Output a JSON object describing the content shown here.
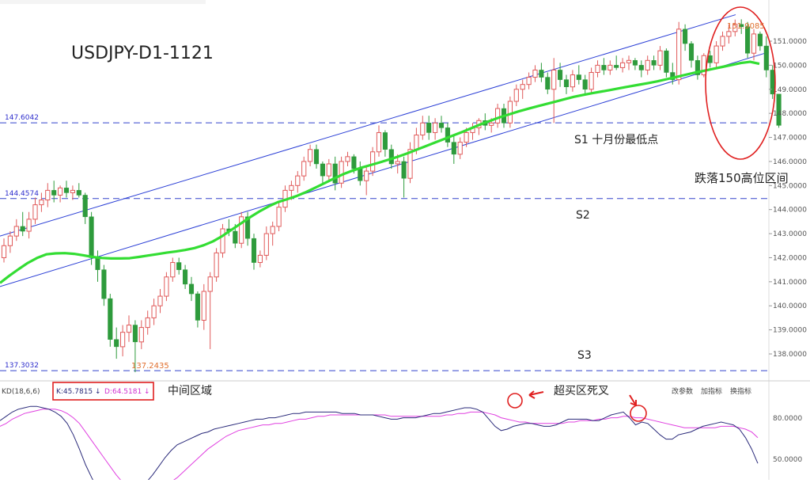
{
  "chart_data": {
    "type": "candlestick",
    "title": "USDJPY-D1-1121",
    "y_axis": {
      "ticks": [
        "151.0000",
        "150.0000",
        "149.0000",
        "148.0000",
        "147.0000",
        "146.0000",
        "145.0000",
        "144.0000",
        "143.0000",
        "142.0000",
        "141.0000",
        "140.0000",
        "139.0000",
        "138.0000"
      ],
      "range": [
        137.2,
        152.2
      ]
    },
    "levels": [
      {
        "value": 147.6042,
        "label": "147.6042"
      },
      {
        "value": 144.4574,
        "label": "144.4574"
      },
      {
        "value": 137.3032,
        "label": "137.3032"
      }
    ],
    "price_marks": {
      "high": "151.9085",
      "low": "137.2435"
    },
    "annotations": {
      "s1": "S1 十月份最低点",
      "s2": "S2",
      "s3": "S3",
      "circle_note": "跌落150高位区间",
      "kd_middle": "中间区域",
      "kd_cross": "超买区死叉"
    },
    "indicator": {
      "name": "KD(18,6,6)",
      "k": "K:45.7815",
      "d": "D:64.5181",
      "y_ticks": [
        "80.0000",
        "50.0000"
      ],
      "buttons": [
        "改参数",
        "加指标",
        "换指标"
      ]
    },
    "colors": {
      "up": "#e05a5a",
      "down": "#2e9b3c",
      "ma": "#33dd33",
      "channel": "#2b3fd6",
      "level_line": "#3344cc",
      "k_line": "#2a2a7a",
      "d_line": "#e040e0",
      "highlight": "#e02020"
    },
    "candles": [
      [
        142.0,
        142.8,
        141.8,
        142.5
      ],
      [
        142.5,
        143.1,
        142.2,
        142.9
      ],
      [
        142.9,
        143.6,
        142.7,
        143.3
      ],
      [
        143.3,
        143.9,
        142.9,
        143.1
      ],
      [
        143.1,
        143.9,
        142.8,
        143.6
      ],
      [
        143.6,
        144.5,
        143.4,
        144.2
      ],
      [
        144.2,
        144.7,
        143.9,
        144.4
      ],
      [
        144.4,
        145.1,
        144.1,
        144.8
      ],
      [
        144.8,
        145.2,
        144.3,
        144.6
      ],
      [
        144.6,
        145.0,
        144.3,
        144.9
      ],
      [
        144.9,
        145.2,
        144.5,
        144.7
      ],
      [
        144.7,
        145.0,
        144.4,
        144.8
      ],
      [
        144.8,
        145.1,
        144.5,
        144.6
      ],
      [
        144.6,
        144.7,
        143.4,
        143.7
      ],
      [
        143.7,
        143.9,
        141.7,
        142.0
      ],
      [
        142.0,
        142.3,
        141.0,
        141.5
      ],
      [
        141.5,
        141.7,
        140.0,
        140.3
      ],
      [
        140.3,
        140.5,
        138.3,
        138.6
      ],
      [
        138.6,
        139.1,
        137.8,
        138.3
      ],
      [
        138.3,
        139.2,
        137.9,
        138.9
      ],
      [
        138.9,
        139.6,
        138.5,
        139.2
      ],
      [
        139.2,
        139.4,
        137.24,
        138.5
      ],
      [
        138.5,
        139.4,
        138.2,
        139.1
      ],
      [
        139.1,
        139.8,
        138.8,
        139.5
      ],
      [
        139.5,
        140.3,
        139.2,
        140.0
      ],
      [
        140.0,
        140.7,
        139.7,
        140.4
      ],
      [
        140.4,
        141.4,
        140.2,
        141.2
      ],
      [
        141.2,
        142.0,
        141.0,
        141.8
      ],
      [
        141.8,
        142.0,
        141.3,
        141.5
      ],
      [
        141.5,
        141.7,
        140.7,
        140.9
      ],
      [
        140.9,
        141.2,
        140.2,
        140.5
      ],
      [
        140.5,
        140.6,
        139.1,
        139.4
      ],
      [
        139.4,
        140.9,
        139.0,
        140.6
      ],
      [
        140.6,
        141.4,
        138.2,
        141.2
      ],
      [
        141.2,
        142.4,
        141.0,
        142.2
      ],
      [
        142.2,
        143.4,
        142.0,
        143.2
      ],
      [
        143.2,
        143.6,
        142.9,
        143.1
      ],
      [
        143.1,
        143.4,
        142.4,
        142.6
      ],
      [
        142.6,
        143.9,
        142.4,
        143.7
      ],
      [
        143.7,
        143.9,
        142.5,
        142.8
      ],
      [
        142.8,
        143.0,
        141.5,
        141.8
      ],
      [
        141.8,
        142.3,
        141.6,
        142.1
      ],
      [
        142.1,
        143.3,
        141.9,
        143.0
      ],
      [
        143.0,
        143.5,
        142.5,
        143.3
      ],
      [
        143.3,
        144.3,
        143.1,
        144.1
      ],
      [
        144.1,
        145.0,
        143.9,
        144.8
      ],
      [
        144.8,
        145.2,
        144.4,
        145.0
      ],
      [
        145.0,
        145.6,
        144.7,
        145.4
      ],
      [
        145.4,
        146.2,
        145.2,
        146.0
      ],
      [
        146.0,
        146.7,
        145.8,
        146.5
      ],
      [
        146.5,
        146.7,
        145.7,
        145.9
      ],
      [
        145.9,
        146.0,
        145.1,
        145.4
      ],
      [
        145.4,
        146.1,
        145.2,
        145.9
      ],
      [
        145.9,
        146.2,
        144.8,
        145.1
      ],
      [
        145.1,
        146.2,
        144.9,
        146.0
      ],
      [
        146.0,
        146.4,
        145.8,
        146.2
      ],
      [
        146.2,
        146.3,
        145.5,
        145.7
      ],
      [
        145.7,
        146.0,
        145.0,
        145.2
      ],
      [
        145.2,
        145.8,
        144.6,
        145.6
      ],
      [
        145.6,
        146.6,
        145.4,
        146.4
      ],
      [
        146.4,
        147.5,
        146.2,
        147.2
      ],
      [
        147.2,
        147.3,
        146.2,
        146.5
      ],
      [
        146.5,
        146.7,
        145.7,
        145.9
      ],
      [
        145.9,
        146.3,
        145.5,
        146.0
      ],
      [
        146.0,
        146.2,
        144.5,
        145.3
      ],
      [
        145.3,
        146.8,
        145.1,
        146.5
      ],
      [
        146.5,
        147.4,
        146.3,
        147.1
      ],
      [
        147.1,
        147.9,
        146.9,
        147.6
      ],
      [
        147.6,
        147.9,
        146.9,
        147.2
      ],
      [
        147.2,
        147.8,
        146.9,
        147.6
      ],
      [
        147.6,
        147.9,
        147.2,
        147.4
      ],
      [
        147.4,
        147.6,
        146.6,
        146.8
      ],
      [
        146.8,
        147.1,
        145.9,
        146.3
      ],
      [
        146.3,
        147.0,
        146.1,
        146.8
      ],
      [
        146.8,
        147.4,
        146.6,
        147.2
      ],
      [
        147.2,
        147.6,
        146.9,
        147.4
      ],
      [
        147.4,
        147.8,
        147.1,
        147.7
      ],
      [
        147.7,
        148.0,
        147.3,
        147.5
      ],
      [
        147.5,
        147.8,
        147.2,
        147.6
      ],
      [
        147.6,
        148.4,
        147.4,
        148.2
      ],
      [
        148.2,
        148.4,
        147.4,
        147.6
      ],
      [
        147.6,
        148.7,
        147.4,
        148.5
      ],
      [
        148.5,
        149.2,
        148.3,
        149.0
      ],
      [
        149.0,
        149.4,
        148.6,
        149.2
      ],
      [
        149.2,
        149.7,
        149.0,
        149.5
      ],
      [
        149.5,
        150.0,
        149.3,
        149.8
      ],
      [
        149.8,
        150.1,
        149.3,
        149.5
      ],
      [
        149.5,
        149.7,
        148.8,
        149.0
      ],
      [
        149.0,
        150.3,
        147.6,
        149.8
      ],
      [
        149.8,
        150.1,
        149.1,
        149.4
      ],
      [
        149.4,
        149.6,
        148.8,
        149.1
      ],
      [
        149.1,
        149.8,
        148.9,
        149.6
      ],
      [
        149.6,
        150.0,
        149.2,
        149.4
      ],
      [
        149.4,
        149.6,
        148.8,
        149.0
      ],
      [
        149.0,
        149.9,
        148.8,
        149.7
      ],
      [
        149.7,
        150.2,
        149.5,
        150.0
      ],
      [
        150.0,
        150.3,
        149.6,
        149.8
      ],
      [
        149.8,
        150.2,
        149.6,
        150.0
      ],
      [
        150.0,
        150.4,
        149.8,
        149.9
      ],
      [
        149.9,
        150.3,
        149.7,
        150.1
      ],
      [
        150.1,
        150.4,
        149.8,
        150.2
      ],
      [
        150.2,
        150.3,
        149.8,
        150.0
      ],
      [
        150.0,
        150.2,
        149.5,
        149.8
      ],
      [
        149.8,
        150.4,
        149.6,
        150.2
      ],
      [
        150.2,
        150.4,
        149.8,
        150.0
      ],
      [
        150.0,
        150.8,
        149.8,
        150.6
      ],
      [
        150.6,
        150.7,
        149.5,
        149.7
      ],
      [
        149.7,
        150.1,
        149.2,
        149.4
      ],
      [
        149.4,
        151.8,
        149.2,
        151.5
      ],
      [
        151.5,
        151.7,
        150.6,
        150.9
      ],
      [
        150.9,
        151.0,
        149.9,
        150.2
      ],
      [
        150.2,
        150.4,
        149.4,
        149.6
      ],
      [
        149.6,
        150.5,
        149.5,
        150.4
      ],
      [
        150.4,
        150.6,
        149.9,
        150.1
      ],
      [
        150.1,
        151.0,
        149.9,
        150.8
      ],
      [
        150.8,
        151.4,
        150.6,
        151.2
      ],
      [
        151.2,
        151.7,
        150.9,
        151.4
      ],
      [
        151.4,
        151.9,
        151.2,
        151.7
      ],
      [
        151.7,
        151.91,
        151.3,
        151.6
      ],
      [
        151.6,
        151.8,
        150.3,
        150.5
      ],
      [
        150.5,
        151.5,
        150.2,
        151.3
      ],
      [
        151.3,
        151.4,
        150.6,
        150.8
      ],
      [
        150.8,
        151.2,
        149.5,
        149.8
      ],
      [
        149.8,
        150.0,
        148.6,
        148.8
      ],
      [
        148.8,
        148.8,
        147.4,
        147.5
      ]
    ],
    "ma": [
      140.95,
      141.25,
      141.52,
      141.78,
      141.99,
      142.14,
      142.18,
      142.19,
      142.16,
      142.1,
      142.03,
      141.99,
      141.97,
      141.97,
      141.98,
      142.03,
      142.09,
      142.15,
      142.21,
      142.26,
      142.32,
      142.4,
      142.52,
      142.68,
      142.9,
      143.16,
      143.42,
      143.68,
      143.92,
      144.13,
      144.31,
      144.43,
      144.56,
      144.72,
      144.9,
      145.09,
      145.28,
      145.46,
      145.61,
      145.74,
      145.85,
      145.96,
      146.08,
      146.2,
      146.34,
      146.49,
      146.64,
      146.79,
      146.94,
      147.09,
      147.24,
      147.4,
      147.56,
      147.7,
      147.84,
      147.96,
      148.08,
      148.19,
      148.29,
      148.39,
      148.49,
      148.59,
      148.69,
      148.77,
      148.84,
      148.91,
      148.98,
      149.05,
      149.12,
      149.19,
      149.26,
      149.33,
      149.42,
      149.51,
      149.6,
      149.69,
      149.77,
      149.85,
      149.93,
      150.01,
      150.09,
      150.14,
      150.06
    ],
    "k_vals": [
      76,
      79,
      82,
      84,
      85,
      86,
      86,
      85,
      84,
      82,
      79,
      74,
      66,
      56,
      45,
      36,
      28,
      22,
      19,
      18,
      19,
      21,
      24,
      28,
      33,
      38,
      44,
      50,
      55,
      59,
      61,
      63,
      65,
      67,
      68,
      70,
      71,
      72,
      73,
      74,
      75,
      76,
      77,
      77,
      78,
      78,
      79,
      80,
      81,
      81,
      82,
      82,
      82,
      82,
      82,
      82,
      81,
      81,
      81,
      80,
      80,
      80,
      79,
      78,
      77,
      77,
      78,
      78,
      78,
      79,
      80,
      81,
      81,
      82,
      83,
      84,
      85,
      85,
      84,
      82,
      77,
      72,
      69,
      70,
      72,
      73,
      74,
      74,
      73,
      72,
      72,
      73,
      75,
      77,
      77,
      77,
      77,
      76,
      76,
      78,
      80,
      81,
      82,
      78,
      73,
      75,
      74,
      70,
      66,
      63,
      63,
      66,
      67,
      68,
      70,
      72,
      73,
      74,
      75,
      74,
      73,
      70,
      64,
      56,
      46
    ],
    "d_vals": [
      72,
      74,
      77,
      79,
      81,
      82,
      83,
      84,
      84,
      84,
      83,
      81,
      78,
      74,
      68,
      62,
      56,
      50,
      44,
      38,
      33,
      30,
      27,
      25,
      25,
      26,
      28,
      30,
      33,
      36,
      40,
      44,
      48,
      52,
      56,
      59,
      62,
      65,
      67,
      69,
      70,
      71,
      72,
      73,
      73,
      74,
      74,
      75,
      76,
      77,
      77,
      78,
      79,
      79,
      80,
      80,
      80,
      80,
      80,
      80,
      80,
      80,
      80,
      80,
      79,
      79,
      79,
      79,
      79,
      79,
      79,
      79,
      79,
      80,
      80,
      81,
      81,
      82,
      82,
      82,
      81,
      80,
      78,
      77,
      76,
      75,
      75,
      74,
      74,
      74,
      74,
      74,
      74,
      75,
      75,
      76,
      76,
      76,
      77,
      77,
      78,
      78,
      79,
      79,
      78,
      78,
      77,
      76,
      75,
      74,
      73,
      72,
      71,
      71,
      71,
      71,
      71,
      71,
      72,
      72,
      72,
      71,
      70,
      68,
      64
    ]
  }
}
